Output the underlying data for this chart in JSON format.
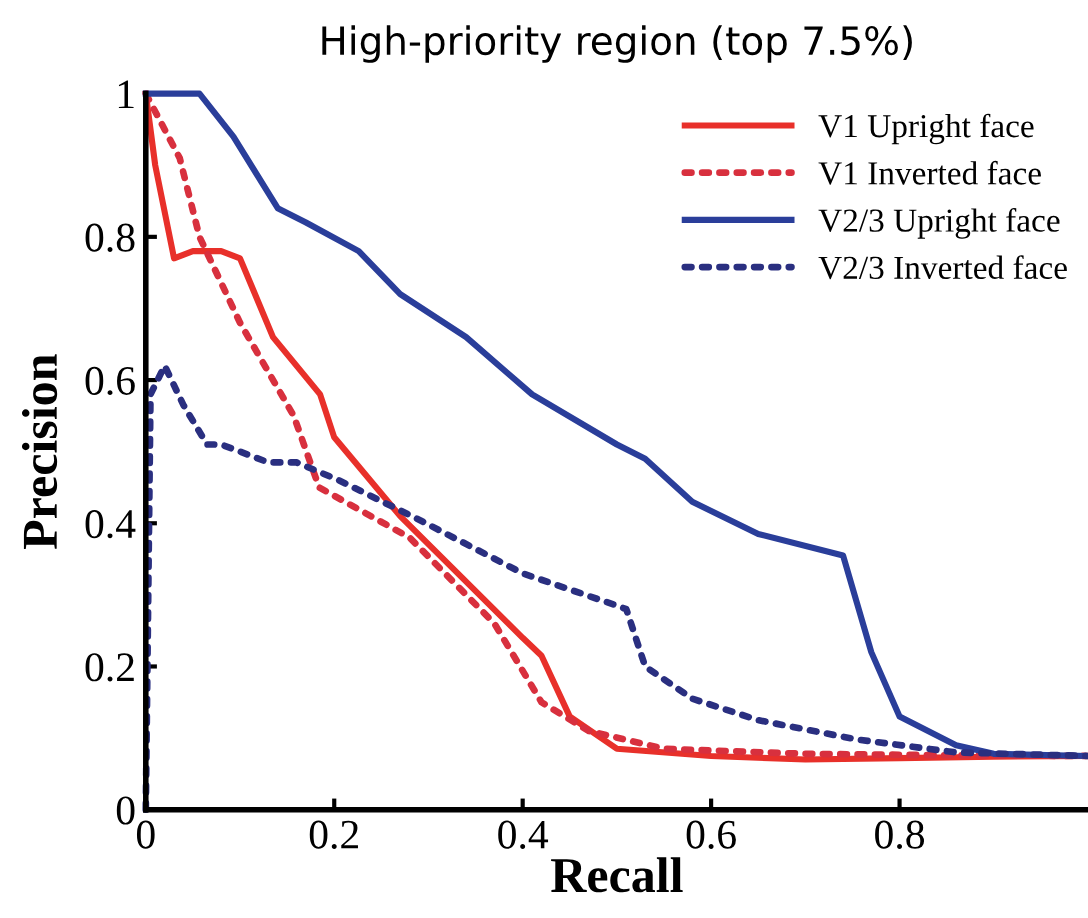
{
  "chart_data": {
    "type": "line",
    "title": "High-priority region (top 7.5%)",
    "xlabel": "Recall",
    "ylabel": "Precision",
    "xlim": [
      0,
      1
    ],
    "ylim": [
      0,
      1
    ],
    "xticks": [
      0,
      0.2,
      0.4,
      0.6,
      0.8
    ],
    "yticks": [
      0,
      0.2,
      0.4,
      0.6,
      0.8,
      1
    ],
    "grid": false,
    "legend": "top right",
    "marker": "none",
    "series": [
      {
        "name": "V1 Upright face",
        "color": "#e8302a",
        "line_style": "solid",
        "x": [
          0,
          0.01,
          0.03,
          0.05,
          0.08,
          0.1,
          0.135,
          0.185,
          0.2,
          0.27,
          0.4,
          0.42,
          0.45,
          0.5,
          0.6,
          0.7,
          0.8,
          0.9,
          1
        ],
        "values": [
          1,
          0.9,
          0.77,
          0.78,
          0.78,
          0.77,
          0.66,
          0.58,
          0.52,
          0.41,
          0.24,
          0.215,
          0.13,
          0.085,
          0.075,
          0.07,
          0.072,
          0.074,
          0.075
        ]
      },
      {
        "name": "V1 Inverted face",
        "color": "#d8303e",
        "line_style": "dotted",
        "x": [
          0,
          0.036,
          0.057,
          0.1,
          0.157,
          0.184,
          0.28,
          0.37,
          0.42,
          0.47,
          0.55,
          0.7,
          0.85,
          1
        ],
        "values": [
          1,
          0.91,
          0.8,
          0.68,
          0.55,
          0.45,
          0.38,
          0.26,
          0.15,
          0.11,
          0.085,
          0.078,
          0.076,
          0.075
        ]
      },
      {
        "name": "V2/3 Upright face",
        "color": "#2a3e9a",
        "line_style": "solid",
        "x": [
          0,
          0.057,
          0.093,
          0.14,
          0.17,
          0.226,
          0.27,
          0.34,
          0.41,
          0.5,
          0.53,
          0.58,
          0.65,
          0.74,
          0.77,
          0.8,
          0.86,
          0.9,
          1
        ],
        "values": [
          1,
          1,
          0.94,
          0.84,
          0.82,
          0.78,
          0.72,
          0.66,
          0.58,
          0.51,
          0.49,
          0.43,
          0.385,
          0.355,
          0.22,
          0.13,
          0.09,
          0.078,
          0.075
        ]
      },
      {
        "name": "V2/3 Inverted face",
        "color": "#2a2f80",
        "line_style": "dotted",
        "x": [
          0,
          0.005,
          0.02,
          0.04,
          0.065,
          0.08,
          0.13,
          0.16,
          0.205,
          0.29,
          0.4,
          0.5,
          0.51,
          0.53,
          0.58,
          0.65,
          0.755,
          0.86,
          1
        ],
        "values": [
          0,
          0.58,
          0.62,
          0.565,
          0.51,
          0.51,
          0.485,
          0.485,
          0.46,
          0.405,
          0.33,
          0.285,
          0.28,
          0.2,
          0.155,
          0.125,
          0.098,
          0.08,
          0.075
        ]
      }
    ]
  }
}
